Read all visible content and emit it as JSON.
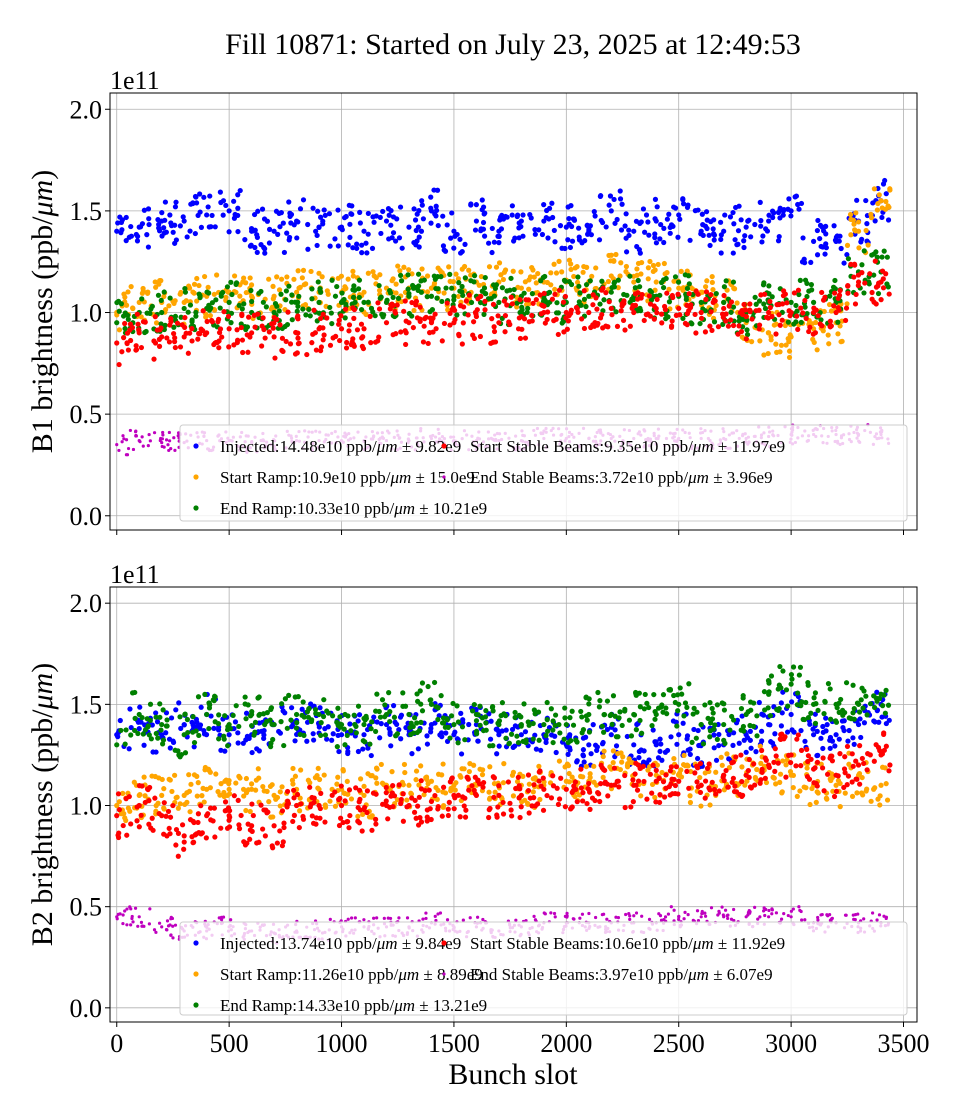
{
  "title": "Fill 10871: Started on July 23, 2025 at 12:49:53",
  "chart_data": [
    {
      "type": "scatter",
      "ylabel_prefix": "B1 brightness (ppb/",
      "ylabel_unit": "μm",
      "ylabel_suffix": ")",
      "offset_label": "1e11",
      "xlabel": "",
      "xlim": [
        -30,
        3560
      ],
      "ylim": [
        -0.07,
        2.08
      ],
      "y_scale": 100000000000.0,
      "grid": true,
      "legend_position": "lower-right",
      "x_ticks": [
        0,
        500,
        1000,
        1500,
        2000,
        2500,
        3000,
        3500
      ],
      "y_ticks": [
        "0.0",
        "0.5",
        "1.0",
        "1.5",
        "2.0"
      ],
      "x": [
        0,
        100,
        200,
        300,
        400,
        500,
        600,
        700,
        800,
        900,
        1000,
        1100,
        1200,
        1300,
        1400,
        1500,
        1600,
        1700,
        1800,
        1900,
        2000,
        2100,
        2200,
        2300,
        2400,
        2500,
        2600,
        2700,
        2800,
        2900,
        3000,
        3100,
        3200,
        3300,
        3400
      ],
      "series": [
        {
          "name": "Injected",
          "legend": "Injected:14.48e10 ppb/",
          "stat": " ± 9.82e9",
          "color": "#0000ff",
          "values": [
            1.4,
            1.42,
            1.45,
            1.45,
            1.48,
            1.5,
            1.4,
            1.4,
            1.45,
            1.42,
            1.42,
            1.4,
            1.45,
            1.42,
            1.5,
            1.4,
            1.45,
            1.4,
            1.45,
            1.45,
            1.42,
            1.4,
            1.5,
            1.4,
            1.45,
            1.48,
            1.4,
            1.4,
            1.42,
            1.45,
            1.5,
            1.35,
            1.35,
            1.45,
            1.55
          ]
        },
        {
          "name": "Start Ramp",
          "legend": "Start Ramp:10.9e10 ppb/",
          "stat": " ± 15.0e9",
          "color": "#ffa500",
          "values": [
            1.0,
            1.05,
            1.05,
            1.05,
            1.08,
            1.1,
            1.08,
            1.08,
            1.1,
            1.1,
            1.1,
            1.1,
            1.12,
            1.12,
            1.12,
            1.12,
            1.15,
            1.15,
            1.12,
            1.15,
            1.15,
            1.15,
            1.18,
            1.15,
            1.15,
            1.12,
            1.1,
            1.05,
            0.95,
            0.9,
            0.88,
            0.92,
            0.95,
            1.4,
            1.55
          ]
        },
        {
          "name": "End Ramp",
          "legend": "End Ramp:10.33e10 ppb/",
          "stat": " ± 10.21e9",
          "color": "#008000",
          "values": [
            0.95,
            1.0,
            1.0,
            1.02,
            1.02,
            1.05,
            1.0,
            1.0,
            1.05,
            1.05,
            1.05,
            1.05,
            1.05,
            1.08,
            1.08,
            1.08,
            1.08,
            1.05,
            1.08,
            1.08,
            1.05,
            1.08,
            1.1,
            1.08,
            1.08,
            1.08,
            1.05,
            1.05,
            1.0,
            1.05,
            1.05,
            1.05,
            1.05,
            1.2,
            1.2
          ]
        },
        {
          "name": "Start Stable Beams",
          "legend": "Start Stable Beams:9.35e10 ppb/",
          "stat": " ± 11.97e9",
          "color": "#ff0000",
          "values": [
            0.85,
            0.9,
            0.88,
            0.88,
            0.9,
            0.92,
            0.9,
            0.88,
            0.9,
            0.92,
            0.92,
            0.92,
            0.95,
            0.95,
            0.95,
            0.95,
            0.98,
            0.95,
            0.98,
            1.0,
            1.0,
            1.0,
            1.02,
            1.0,
            1.02,
            1.02,
            1.0,
            1.02,
            0.98,
            1.0,
            1.0,
            1.0,
            1.0,
            1.15,
            1.15
          ]
        },
        {
          "name": "End Stable Beams",
          "legend": "End Stable Beams:3.72e10 ppb/",
          "stat": " ± 3.96e9",
          "color": "#bf00bf",
          "values": [
            0.35,
            0.37,
            0.36,
            0.36,
            0.37,
            0.37,
            0.36,
            0.37,
            0.37,
            0.37,
            0.37,
            0.37,
            0.37,
            0.37,
            0.38,
            0.37,
            0.37,
            0.37,
            0.37,
            0.38,
            0.38,
            0.38,
            0.38,
            0.38,
            0.38,
            0.38,
            0.38,
            0.38,
            0.38,
            0.39,
            0.4,
            0.4,
            0.4,
            0.4,
            0.4
          ]
        }
      ]
    },
    {
      "type": "scatter",
      "ylabel_prefix": "B2 brightness (ppb/",
      "ylabel_unit": "μm",
      "ylabel_suffix": ")",
      "offset_label": "1e11",
      "xlabel": "Bunch slot",
      "xlim": [
        -30,
        3560
      ],
      "ylim": [
        -0.07,
        2.08
      ],
      "y_scale": 100000000000.0,
      "grid": true,
      "legend_position": "lower-right",
      "x_ticks": [
        0,
        500,
        1000,
        1500,
        2000,
        2500,
        3000,
        3500
      ],
      "y_ticks": [
        "0.0",
        "0.5",
        "1.0",
        "1.5",
        "2.0"
      ],
      "x": [
        0,
        100,
        200,
        300,
        400,
        500,
        600,
        700,
        800,
        900,
        1000,
        1100,
        1200,
        1300,
        1400,
        1500,
        1600,
        1700,
        1800,
        1900,
        2000,
        2100,
        2200,
        2300,
        2400,
        2500,
        2600,
        2700,
        2800,
        2900,
        3000,
        3100,
        3200,
        3300,
        3400
      ],
      "series": [
        {
          "name": "Injected",
          "legend": "Injected:13.74e10 ppb/",
          "stat": " ± 9.84e9",
          "color": "#0000ff",
          "values": [
            1.35,
            1.38,
            1.35,
            1.4,
            1.45,
            1.35,
            1.35,
            1.4,
            1.42,
            1.4,
            1.35,
            1.35,
            1.4,
            1.35,
            1.4,
            1.35,
            1.4,
            1.35,
            1.35,
            1.35,
            1.3,
            1.3,
            1.35,
            1.3,
            1.3,
            1.35,
            1.3,
            1.3,
            1.35,
            1.4,
            1.45,
            1.35,
            1.35,
            1.4,
            1.5
          ]
        },
        {
          "name": "Start Ramp",
          "legend": "Start Ramp:11.26e10 ppb/",
          "stat": " ± 8.89e9",
          "color": "#ffa500",
          "values": [
            1.0,
            1.05,
            1.05,
            1.05,
            1.08,
            1.08,
            1.08,
            1.05,
            1.08,
            1.08,
            1.08,
            1.05,
            1.1,
            1.1,
            1.12,
            1.1,
            1.1,
            1.1,
            1.1,
            1.1,
            1.12,
            1.12,
            1.18,
            1.15,
            1.15,
            1.15,
            1.1,
            1.15,
            1.15,
            1.2,
            1.15,
            1.1,
            1.1,
            1.15,
            1.1
          ]
        },
        {
          "name": "End Ramp",
          "legend": "End Ramp:14.33e10 ppb/",
          "stat": " ± 13.21e9",
          "color": "#008000",
          "values": [
            1.3,
            1.45,
            1.4,
            1.35,
            1.45,
            1.4,
            1.45,
            1.4,
            1.45,
            1.45,
            1.4,
            1.4,
            1.45,
            1.45,
            1.5,
            1.4,
            1.45,
            1.4,
            1.4,
            1.4,
            1.4,
            1.45,
            1.45,
            1.45,
            1.45,
            1.5,
            1.4,
            1.4,
            1.45,
            1.55,
            1.6,
            1.5,
            1.5,
            1.5,
            1.55
          ]
        },
        {
          "name": "Start Stable Beams",
          "legend": "Start Stable Beams:10.6e10 ppb/",
          "stat": " ± 11.92e9",
          "color": "#ff0000",
          "values": [
            0.95,
            1.0,
            0.95,
            0.85,
            0.95,
            0.95,
            0.9,
            0.9,
            1.0,
            1.0,
            1.0,
            0.98,
            1.0,
            1.0,
            1.02,
            1.05,
            1.05,
            1.05,
            1.05,
            1.08,
            1.08,
            1.08,
            1.1,
            1.1,
            1.12,
            1.12,
            1.1,
            1.15,
            1.15,
            1.2,
            1.25,
            1.18,
            1.15,
            1.2,
            1.25
          ]
        },
        {
          "name": "End Stable Beams",
          "legend": "End Stable Beams:3.97e10 ppb/",
          "stat": " ± 6.07e9",
          "color": "#bf00bf",
          "values": [
            0.45,
            0.45,
            0.4,
            0.38,
            0.38,
            0.4,
            0.38,
            0.37,
            0.38,
            0.38,
            0.4,
            0.4,
            0.4,
            0.4,
            0.42,
            0.4,
            0.4,
            0.38,
            0.4,
            0.42,
            0.42,
            0.42,
            0.42,
            0.42,
            0.42,
            0.45,
            0.45,
            0.45,
            0.45,
            0.45,
            0.45,
            0.42,
            0.42,
            0.42,
            0.42
          ]
        }
      ]
    }
  ]
}
